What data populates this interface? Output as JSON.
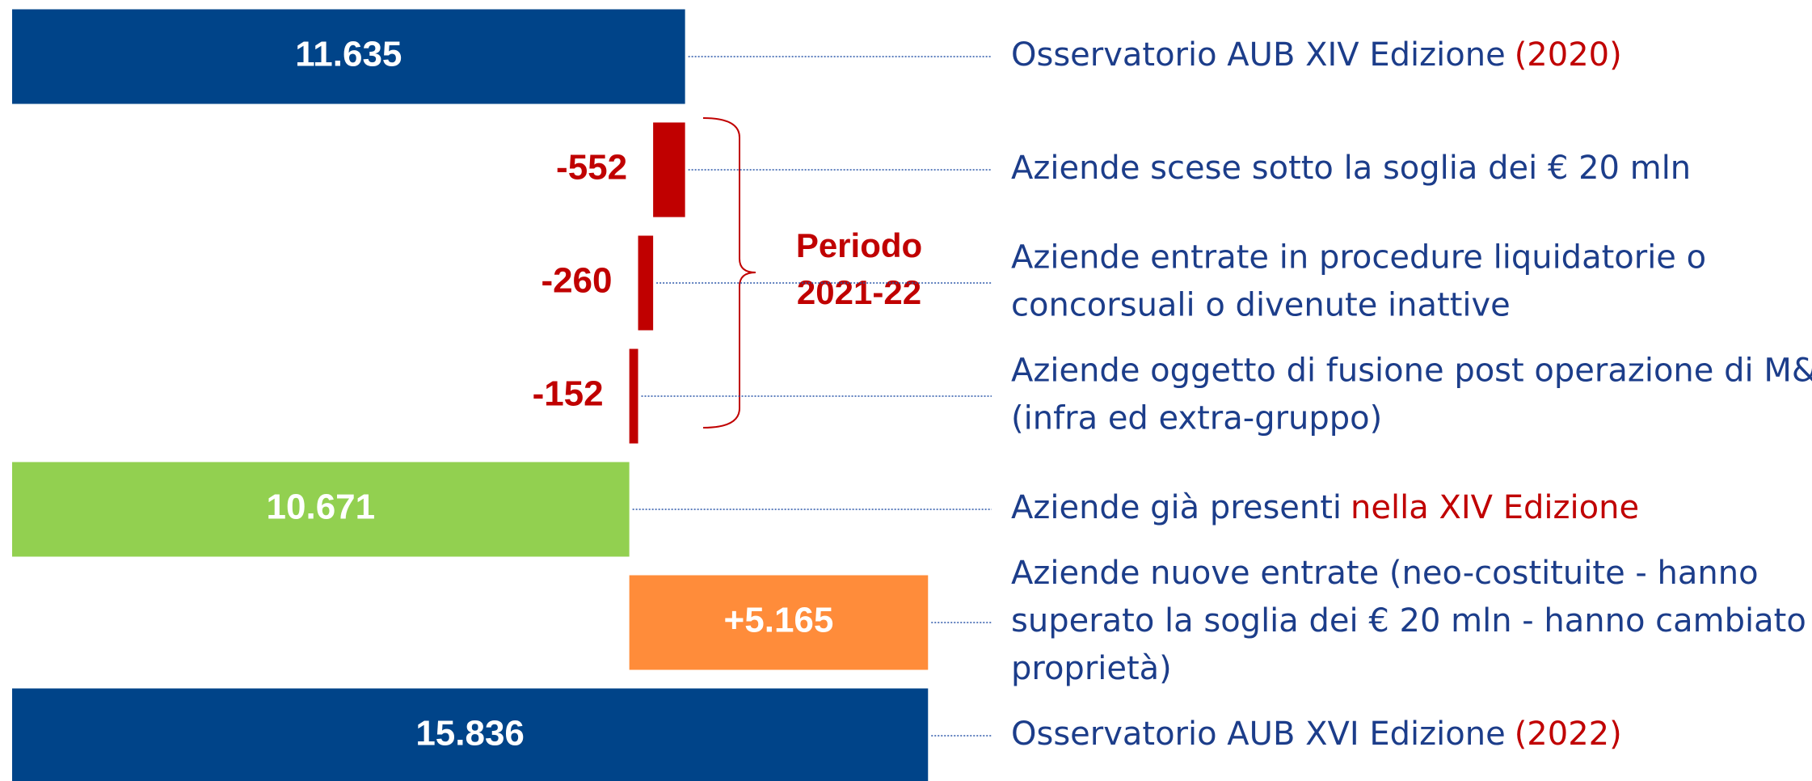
{
  "chart_data": {
    "type": "waterfall",
    "orientation": "horizontal",
    "xlim": [
      0,
      16000
    ],
    "values": [
      11635,
      -552,
      -260,
      -152,
      10671,
      5165,
      15836
    ],
    "value_labels": [
      "11.635",
      "-552",
      "-260",
      "-152",
      "10.671",
      "+5.165",
      "15.836"
    ],
    "is_total": [
      true,
      false,
      false,
      false,
      true,
      false,
      true
    ],
    "colors": [
      "#004489",
      "#c00000",
      "#c00000",
      "#c00000",
      "#92d050",
      "#ff8c3a",
      "#004489"
    ],
    "categories": [
      [
        "Osservatorio AUB XIV Edizione"
      ],
      [
        "Aziende scese sotto la soglia dei € 20 mln"
      ],
      [
        "Aziende entrate in procedure liquidatorie o",
        "concorsuali o divenute inattive"
      ],
      [
        "Aziende oggetto di fusione post operazione di M&A",
        "(infra ed extra-gruppo)"
      ],
      [
        "Aziende già presenti"
      ],
      [
        "Aziende nuove entrate (neo-costituite - hanno",
        "superato la soglia dei € 20 mln - hanno cambiato",
        "proprietà)"
      ],
      [
        "Osservatorio AUB XVI Edizione"
      ]
    ],
    "category_highlights": [
      "(2020)",
      null,
      null,
      null,
      "nella XIV Edizione",
      null,
      "(2022)"
    ],
    "bracket_label": [
      "Periodo",
      "2021-22"
    ]
  }
}
